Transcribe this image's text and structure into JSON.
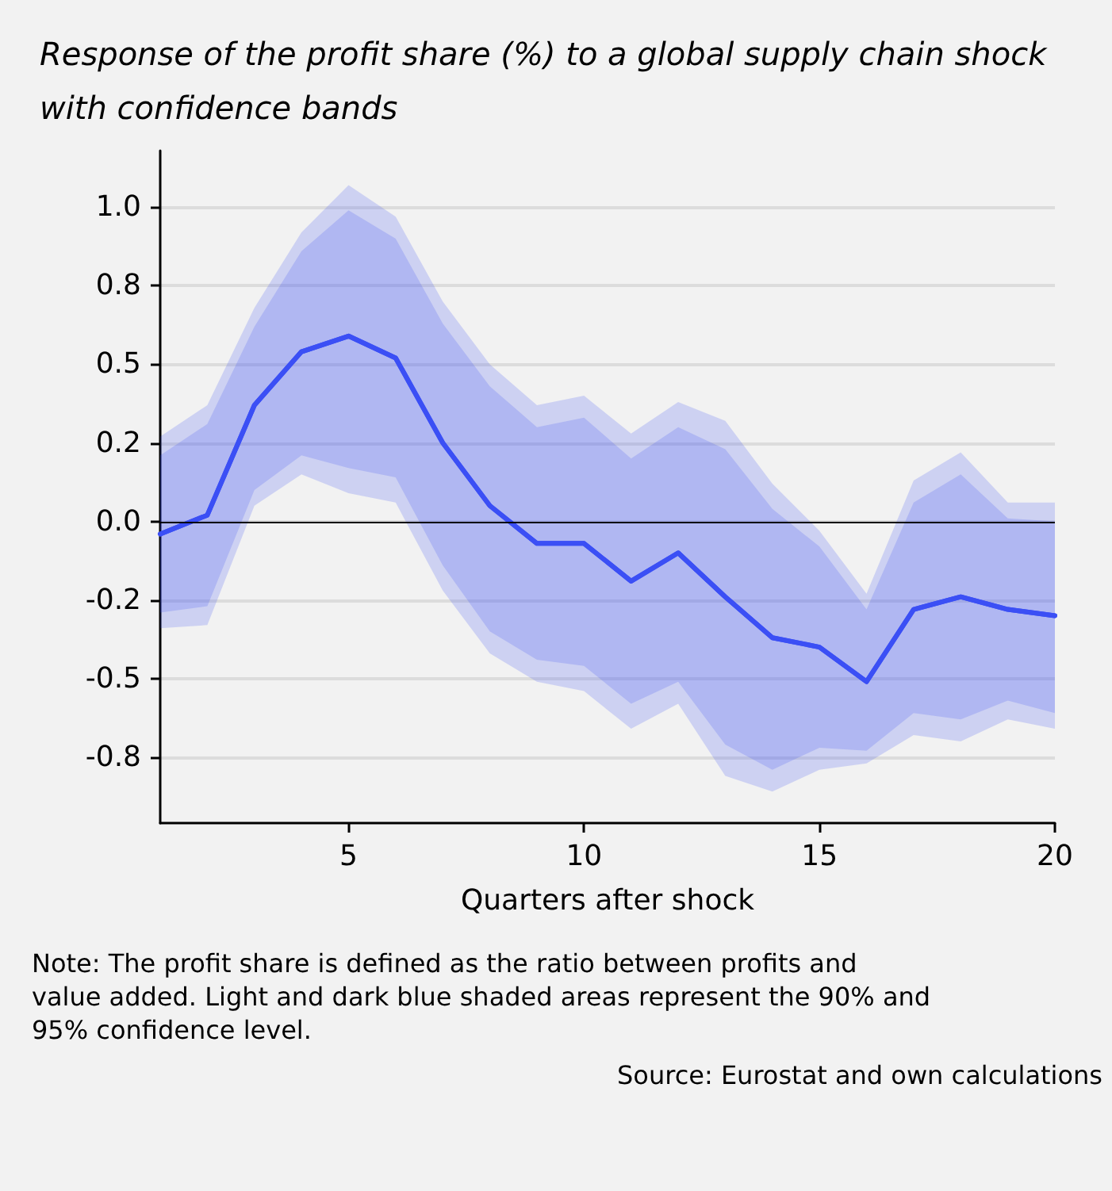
{
  "chart_data": {
    "type": "line",
    "title": "Response of the profit share (%) to a global supply chain shock with confidence bands",
    "xlabel": "Quarters after shock",
    "x": [
      1,
      2,
      3,
      4,
      5,
      6,
      7,
      8,
      9,
      10,
      11,
      12,
      13,
      14,
      15,
      16,
      17,
      18,
      19,
      20
    ],
    "series": [
      {
        "color": "#3b4ff5",
        "values": [
          -0.04,
          0.02,
          0.37,
          0.54,
          0.59,
          0.52,
          0.25,
          0.05,
          -0.07,
          -0.07,
          -0.19,
          -0.1,
          -0.24,
          -0.37,
          -0.4,
          -0.51,
          -0.28,
          -0.24,
          -0.28,
          -0.3
        ],
        "lower": [
          -0.34,
          -0.33,
          0.05,
          0.15,
          0.09,
          0.06,
          -0.22,
          -0.42,
          -0.51,
          -0.54,
          -0.66,
          -0.58,
          -0.81,
          -0.86,
          -0.79,
          -0.77,
          -0.68,
          -0.7,
          -0.63,
          -0.66
        ],
        "upper": [
          0.27,
          0.37,
          0.68,
          0.92,
          1.07,
          0.97,
          0.7,
          0.5,
          0.37,
          0.4,
          0.28,
          0.38,
          0.32,
          0.12,
          -0.03,
          -0.23,
          0.13,
          0.22,
          0.06,
          0.06
        ]
      },
      {
        "color": "#3b4ff5",
        "values": [
          -0.04,
          0.02,
          0.37,
          0.54,
          0.59,
          0.52,
          0.25,
          0.05,
          -0.07,
          -0.07,
          -0.19,
          -0.1,
          -0.24,
          -0.37,
          -0.4,
          -0.51,
          -0.28,
          -0.24,
          -0.28,
          -0.3
        ],
        "lower": [
          -0.29,
          -0.27,
          0.1,
          0.21,
          0.17,
          0.14,
          -0.14,
          -0.35,
          -0.44,
          -0.46,
          -0.58,
          -0.51,
          -0.71,
          -0.79,
          -0.72,
          -0.73,
          -0.61,
          -0.63,
          -0.57,
          -0.61
        ],
        "upper": [
          0.21,
          0.31,
          0.62,
          0.86,
          0.99,
          0.9,
          0.63,
          0.43,
          0.3,
          0.33,
          0.2,
          0.3,
          0.23,
          0.04,
          -0.08,
          -0.28,
          0.06,
          0.15,
          0.01,
          0.0
        ]
      }
    ],
    "xlim": [
      1,
      20
    ],
    "xticks": [
      5,
      10,
      15,
      20
    ],
    "ylim": [
      -0.96,
      1.18
    ],
    "yticks": [
      {
        "value": 1,
        "label": "1.0"
      },
      {
        "value": 0.75,
        "label": "0.8"
      },
      {
        "value": 0.5,
        "label": "0.5"
      },
      {
        "value": 0.25,
        "label": "0.2"
      },
      {
        "value": 0,
        "label": "0.0"
      },
      {
        "value": -0.25,
        "label": "-0.2"
      },
      {
        "value": -0.5,
        "label": "-0.5"
      },
      {
        "value": -0.75,
        "label": "-0.8"
      }
    ],
    "grid": "y",
    "marker": "none",
    "line_style": "solid",
    "ref_lines": [
      {
        "axis": "y",
        "value": 0,
        "color": "#000000"
      }
    ],
    "annotations": [
      "Note: The profit share is defined as the ratio between profits and value added. Light and dark blue shaded areas represent the 90% and 95% confidence level.",
      "Source: Eurostat and own calculations"
    ]
  }
}
